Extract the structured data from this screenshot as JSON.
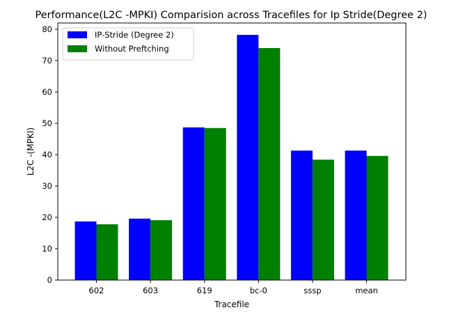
{
  "chart_data": {
    "type": "bar",
    "title": "Performance(L2C -MPKI) Comparision across Tracefiles for Ip Stride(Degree 2)",
    "xlabel": "Tracefile",
    "ylabel": "L2C -(MPKI)",
    "categories": [
      "602",
      "603",
      "619",
      "bc-0",
      "sssp",
      "mean"
    ],
    "series": [
      {
        "name": "IP-Stride (Degree 2)",
        "color": "#0000ff",
        "values": [
          18.7,
          19.6,
          48.7,
          78.2,
          41.3,
          41.3
        ]
      },
      {
        "name": "Without Preftching",
        "color": "#008000",
        "values": [
          17.8,
          19.1,
          48.5,
          74.0,
          38.4,
          39.6
        ]
      }
    ],
    "ylim": [
      0,
      82
    ],
    "yticks": [
      0,
      10,
      20,
      30,
      40,
      50,
      60,
      70,
      80
    ],
    "grid": false,
    "legend_position": "top-left"
  }
}
